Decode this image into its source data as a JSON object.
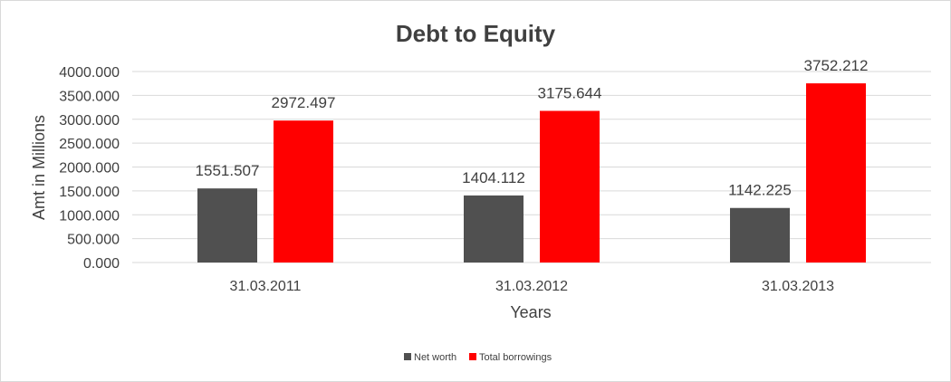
{
  "chart_data": {
    "type": "bar",
    "title": "Debt to Equity",
    "xlabel": "Years",
    "ylabel": "Amt in Millions",
    "categories": [
      "31.03.2011",
      "31.03.2012",
      "31.03.2013"
    ],
    "series": [
      {
        "name": "Net worth",
        "color": "#505050",
        "values": [
          1551.507,
          1404.112,
          1142.225
        ],
        "labels": [
          "1551.507",
          "1404.112",
          "1142.225"
        ]
      },
      {
        "name": "Total borrowings",
        "color": "#ff0000",
        "values": [
          2972.497,
          3175.644,
          3752.212
        ],
        "labels": [
          "2972.497",
          "3175.644",
          "3752.212"
        ]
      }
    ],
    "ylim": [
      0,
      4000
    ],
    "y_ticks": [
      0,
      500,
      1000,
      1500,
      2000,
      2500,
      3000,
      3500,
      4000
    ],
    "y_tick_labels": [
      "0.000",
      "500.000",
      "1000.000",
      "1500.000",
      "2000.000",
      "2500.000",
      "3000.000",
      "3500.000",
      "4000.000"
    ],
    "grid": true,
    "legend_position": "bottom"
  }
}
